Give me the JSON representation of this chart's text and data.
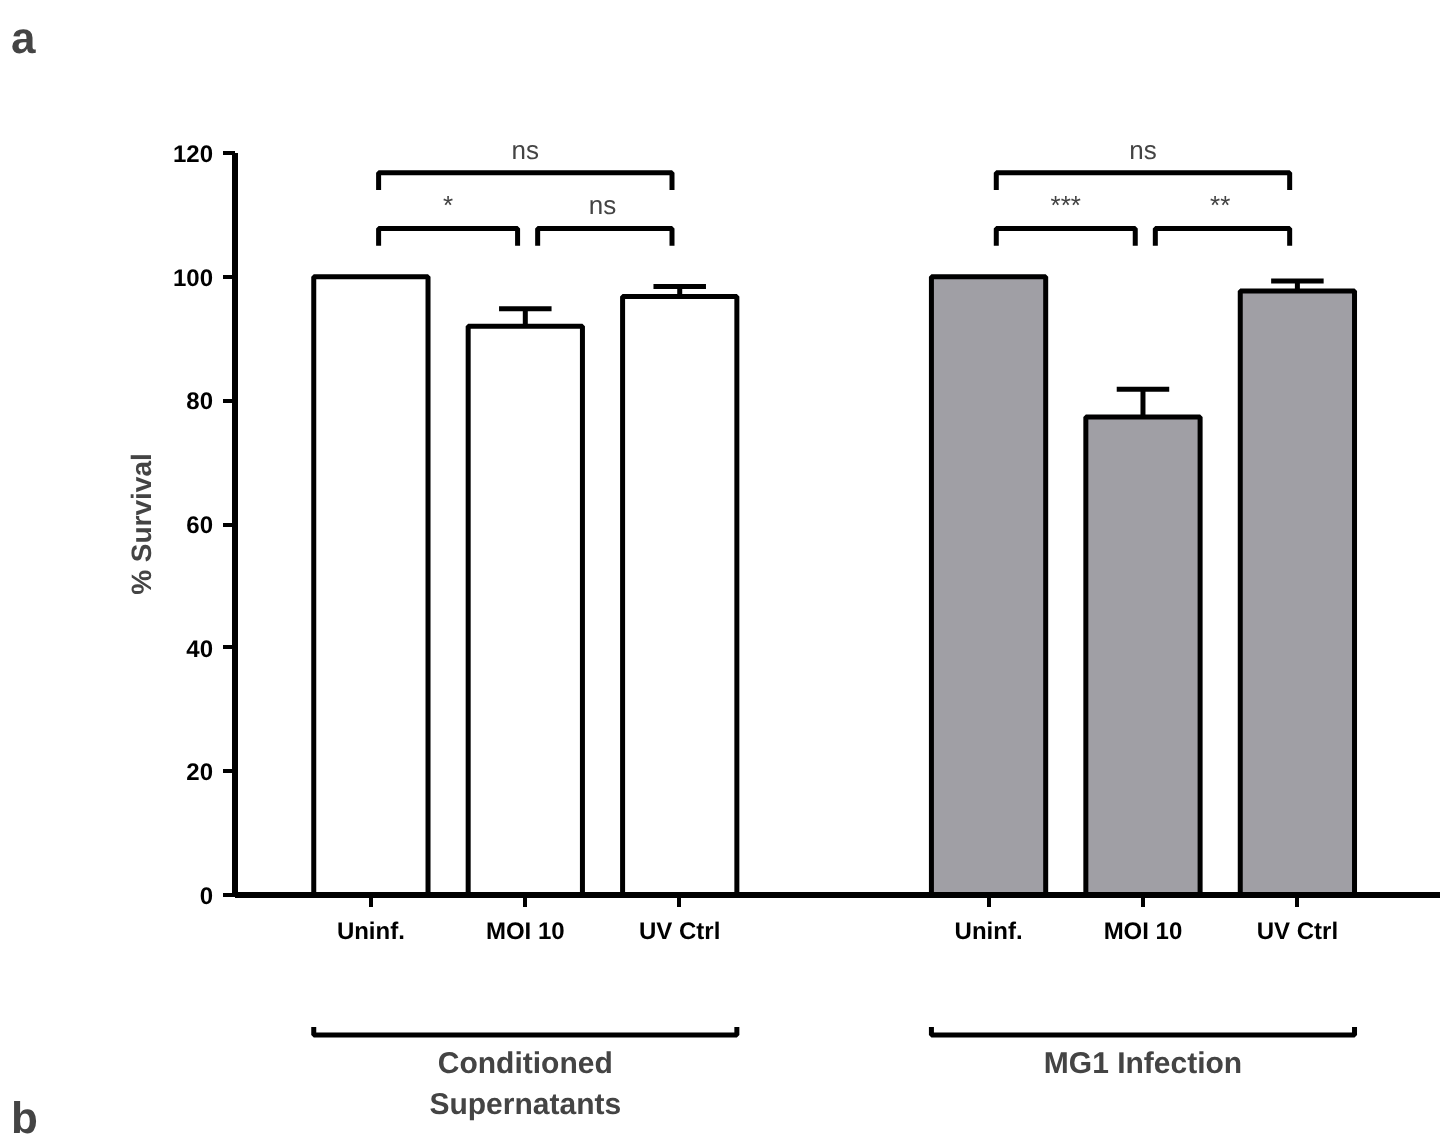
{
  "chart_data": {
    "type": "bar",
    "title": "a",
    "ylabel": "% Survival",
    "categories": [
      "Uninf.",
      "MOI 10",
      "UV Ctrl",
      null,
      "Uninf.",
      "MOI 10",
      "UV Ctrl"
    ],
    "values": [
      100,
      92,
      96.8,
      null,
      100,
      77.3,
      97.7
    ],
    "errors": [
      null,
      2.8,
      1.6,
      null,
      null,
      4.5,
      1.6
    ],
    "colors": [
      "#ffffff",
      "#ffffff",
      "#ffffff",
      null,
      "#a09fa5",
      "#a09fa5",
      "#a09fa5"
    ],
    "ylim": [
      0,
      120
    ],
    "yticks": [
      0,
      20,
      40,
      60,
      80,
      100,
      120
    ],
    "grid": false,
    "annotations": [
      "*",
      "ns",
      "ns",
      "***",
      "**",
      "ns",
      "Conditioned\nSupernatants",
      "MG1 Infection",
      "b"
    ]
  }
}
